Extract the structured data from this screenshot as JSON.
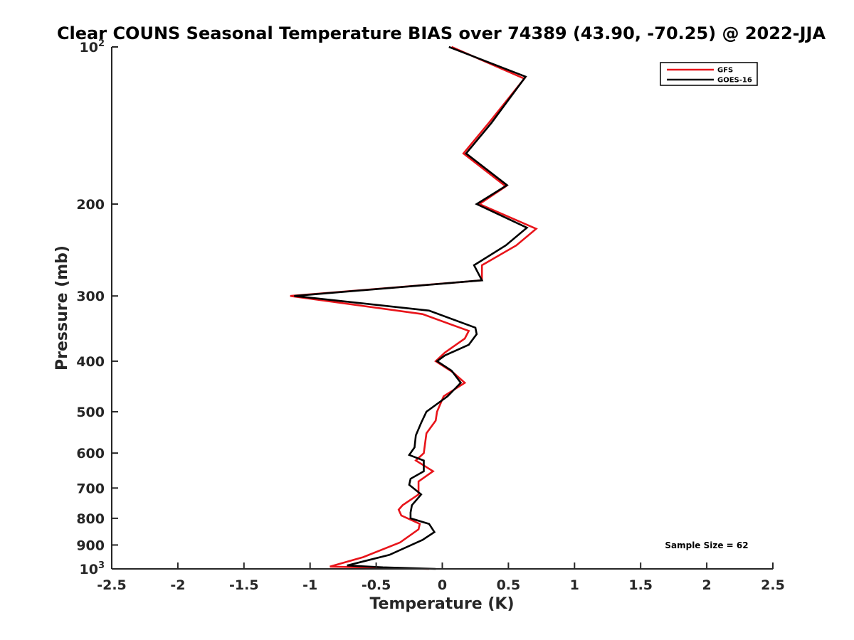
{
  "chart_data": {
    "type": "line",
    "title": "Clear COUNS Seasonal Temperature BIAS over 74389 (43.90, -70.25) @ 2022-JJA",
    "xlabel": "Temperature (K)",
    "ylabel": "Pressure (mb)",
    "xlim": [
      -2.5,
      2.5
    ],
    "ylim": [
      100,
      1000
    ],
    "y_scale": "log",
    "y_reversed": true,
    "grid": false,
    "legend_position": "top-right",
    "x_ticks": [
      -2.5,
      -2,
      -1.5,
      -1,
      -0.5,
      0,
      0.5,
      1,
      1.5,
      2,
      2.5
    ],
    "x_tick_labels": [
      "-2.5",
      "-2",
      "-1.5",
      "-1",
      "-0.5",
      "0",
      "0.5",
      "1",
      "1.5",
      "2",
      "2.5"
    ],
    "y_ticks": [
      100,
      200,
      300,
      400,
      500,
      600,
      700,
      800,
      900,
      1000
    ],
    "y_tick_labels": [
      {
        "base": "10",
        "sup": "2"
      },
      {
        "base": "200"
      },
      {
        "base": "300"
      },
      {
        "base": "400"
      },
      {
        "base": "500"
      },
      {
        "base": "600"
      },
      {
        "base": "700"
      },
      {
        "base": "800"
      },
      {
        "base": "900"
      },
      {
        "base": "10",
        "sup": "3"
      }
    ],
    "annotation": "Sample Size = 62",
    "series": [
      {
        "name": "GFS",
        "color": "#e8141a",
        "points": [
          [
            0.07,
            100
          ],
          [
            0.62,
            115
          ],
          [
            0.35,
            140
          ],
          [
            0.16,
            160
          ],
          [
            0.48,
            185
          ],
          [
            0.28,
            200
          ],
          [
            0.71,
            223
          ],
          [
            0.56,
            240
          ],
          [
            0.3,
            262
          ],
          [
            0.3,
            280
          ],
          [
            -1.15,
            300
          ],
          [
            -0.15,
            325
          ],
          [
            0.2,
            350
          ],
          [
            0.17,
            362
          ],
          [
            0.02,
            385
          ],
          [
            -0.05,
            400
          ],
          [
            0.08,
            420
          ],
          [
            0.17,
            440
          ],
          [
            0.01,
            467
          ],
          [
            -0.04,
            500
          ],
          [
            -0.05,
            520
          ],
          [
            -0.12,
            550
          ],
          [
            -0.13,
            575
          ],
          [
            -0.14,
            600
          ],
          [
            -0.2,
            620
          ],
          [
            -0.07,
            650
          ],
          [
            -0.18,
            680
          ],
          [
            -0.18,
            720
          ],
          [
            -0.3,
            755
          ],
          [
            -0.33,
            770
          ],
          [
            -0.31,
            790
          ],
          [
            -0.17,
            820
          ],
          [
            -0.18,
            840
          ],
          [
            -0.32,
            890
          ],
          [
            -0.6,
            950
          ],
          [
            -0.85,
            990
          ],
          [
            -0.45,
            995
          ],
          [
            -0.1,
            1000
          ]
        ]
      },
      {
        "name": "GOES-16",
        "color": "#000000",
        "points": [
          [
            0.05,
            100
          ],
          [
            0.63,
            114
          ],
          [
            0.37,
            140
          ],
          [
            0.18,
            160
          ],
          [
            0.49,
            184
          ],
          [
            0.26,
            200
          ],
          [
            0.64,
            222
          ],
          [
            0.48,
            240
          ],
          [
            0.24,
            262
          ],
          [
            0.3,
            280
          ],
          [
            -1.12,
            300
          ],
          [
            -0.1,
            320
          ],
          [
            0.25,
            345
          ],
          [
            0.26,
            355
          ],
          [
            0.2,
            372
          ],
          [
            0.02,
            390
          ],
          [
            -0.04,
            400
          ],
          [
            0.07,
            417
          ],
          [
            0.14,
            440
          ],
          [
            0.04,
            467
          ],
          [
            -0.12,
            500
          ],
          [
            -0.16,
            525
          ],
          [
            -0.2,
            555
          ],
          [
            -0.21,
            585
          ],
          [
            -0.25,
            605
          ],
          [
            -0.14,
            620
          ],
          [
            -0.14,
            650
          ],
          [
            -0.24,
            672
          ],
          [
            -0.25,
            690
          ],
          [
            -0.16,
            720
          ],
          [
            -0.23,
            755
          ],
          [
            -0.24,
            780
          ],
          [
            -0.24,
            800
          ],
          [
            -0.1,
            820
          ],
          [
            -0.06,
            850
          ],
          [
            -0.15,
            880
          ],
          [
            -0.4,
            940
          ],
          [
            -0.72,
            985
          ],
          [
            -0.45,
            993
          ],
          [
            -0.05,
            1000
          ]
        ]
      }
    ]
  }
}
